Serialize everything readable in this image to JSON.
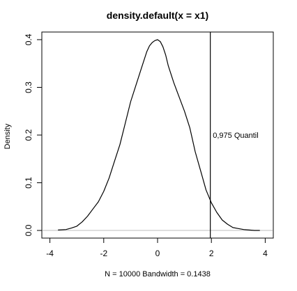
{
  "chart_data": {
    "type": "line",
    "title": "density.default(x = x1)",
    "xlabel": "N = 10000   Bandwidth = 0.1438",
    "ylabel": "Density",
    "xlim": [
      -4.3,
      4.3
    ],
    "ylim": [
      -0.016,
      0.416
    ],
    "x_ticks": [
      -4,
      -2,
      0,
      2,
      4
    ],
    "x_tick_labels": [
      "-4",
      "-2",
      "0",
      "2",
      "4"
    ],
    "y_ticks": [
      0.0,
      0.1,
      0.2,
      0.3,
      0.4
    ],
    "y_tick_labels": [
      "0.0",
      "0.1",
      "0.2",
      "0.3",
      "0.4"
    ],
    "grid": false,
    "baseline": {
      "y": 0,
      "color": "#bebebe"
    },
    "series": [
      {
        "color": "#000000",
        "x": [
          -3.7,
          -3.4,
          -3.2,
          -3.0,
          -2.8,
          -2.6,
          -2.4,
          -2.2,
          -2.0,
          -1.8,
          -1.6,
          -1.4,
          -1.2,
          -1.0,
          -0.8,
          -0.6,
          -0.4,
          -0.3,
          -0.2,
          -0.1,
          0.0,
          0.1,
          0.2,
          0.3,
          0.4,
          0.6,
          0.8,
          1.0,
          1.2,
          1.4,
          1.6,
          1.8,
          2.0,
          2.2,
          2.4,
          2.6,
          2.8,
          3.0,
          3.2,
          3.4,
          3.6,
          3.8
        ],
        "y": [
          0.001,
          0.002,
          0.005,
          0.009,
          0.018,
          0.03,
          0.045,
          0.06,
          0.082,
          0.11,
          0.145,
          0.18,
          0.225,
          0.27,
          0.305,
          0.34,
          0.375,
          0.387,
          0.394,
          0.398,
          0.4,
          0.396,
          0.385,
          0.368,
          0.345,
          0.31,
          0.28,
          0.25,
          0.215,
          0.165,
          0.125,
          0.085,
          0.058,
          0.038,
          0.022,
          0.013,
          0.006,
          0.004,
          0.002,
          0.001,
          0.0,
          0.0
        ]
      }
    ],
    "vline": {
      "x": 1.96,
      "color": "#000000"
    },
    "annotation": {
      "text": "0,975 Quantil",
      "x": 2.9,
      "y": 0.2
    }
  }
}
